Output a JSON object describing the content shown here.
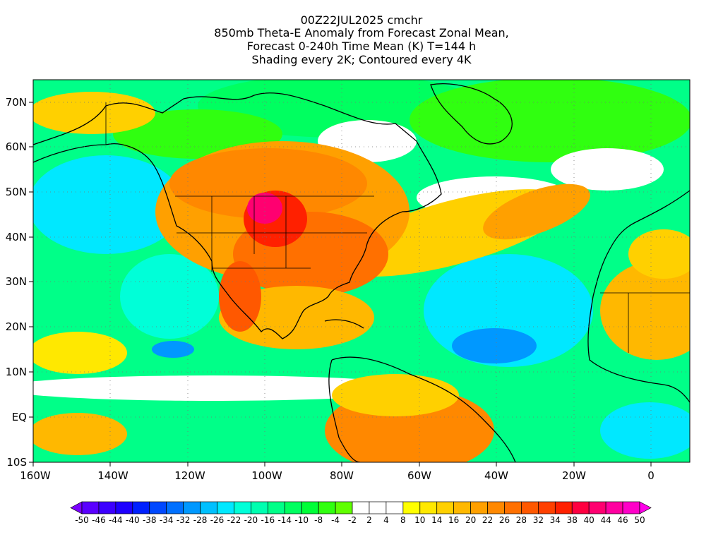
{
  "header": {
    "line1": "00Z22JUL2025 cmchr",
    "line2": "850mb Theta-E Anomaly from Forecast Zonal Mean,",
    "line3": "Forecast 0-240h Time Mean (K) T=144 h",
    "line4": "Shading every 2K; Contoured every 4K"
  },
  "map": {
    "lon_range": [
      -160,
      10
    ],
    "lat_range": [
      -10,
      75
    ],
    "lat_ticks": [
      "70N",
      "60N",
      "50N",
      "40N",
      "30N",
      "20N",
      "10N",
      "EQ",
      "10S"
    ],
    "lon_ticks": [
      "160W",
      "140W",
      "120W",
      "100W",
      "80W",
      "60W",
      "40W",
      "20W",
      "0"
    ]
  },
  "colorbar": {
    "labels": [
      "-50",
      "-46",
      "-44",
      "-40",
      "-38",
      "-34",
      "-32",
      "-28",
      "-26",
      "-22",
      "-20",
      "-16",
      "-14",
      "-10",
      "-8",
      "-4",
      "-2",
      "2",
      "4",
      "8",
      "10",
      "14",
      "16",
      "20",
      "22",
      "26",
      "28",
      "32",
      "34",
      "38",
      "40",
      "44",
      "46",
      "50"
    ],
    "colors": [
      "#7a00ff",
      "#5a00ff",
      "#3c00ff",
      "#1e00ff",
      "#0020ff",
      "#0048ff",
      "#0070ff",
      "#0098ff",
      "#00c0ff",
      "#00e8ff",
      "#00ffd8",
      "#00ffb0",
      "#00ff88",
      "#00ff60",
      "#00ff38",
      "#30ff10",
      "#60ff00",
      "#ffffff",
      "#ffffff",
      "#ffffff",
      "#ffff00",
      "#ffe800",
      "#ffd000",
      "#ffb800",
      "#ffa000",
      "#ff8800",
      "#ff7000",
      "#ff5800",
      "#ff4000",
      "#ff2000",
      "#ff0040",
      "#ff0070",
      "#ff00a0",
      "#ff00c8",
      "#ff00e8"
    ]
  }
}
